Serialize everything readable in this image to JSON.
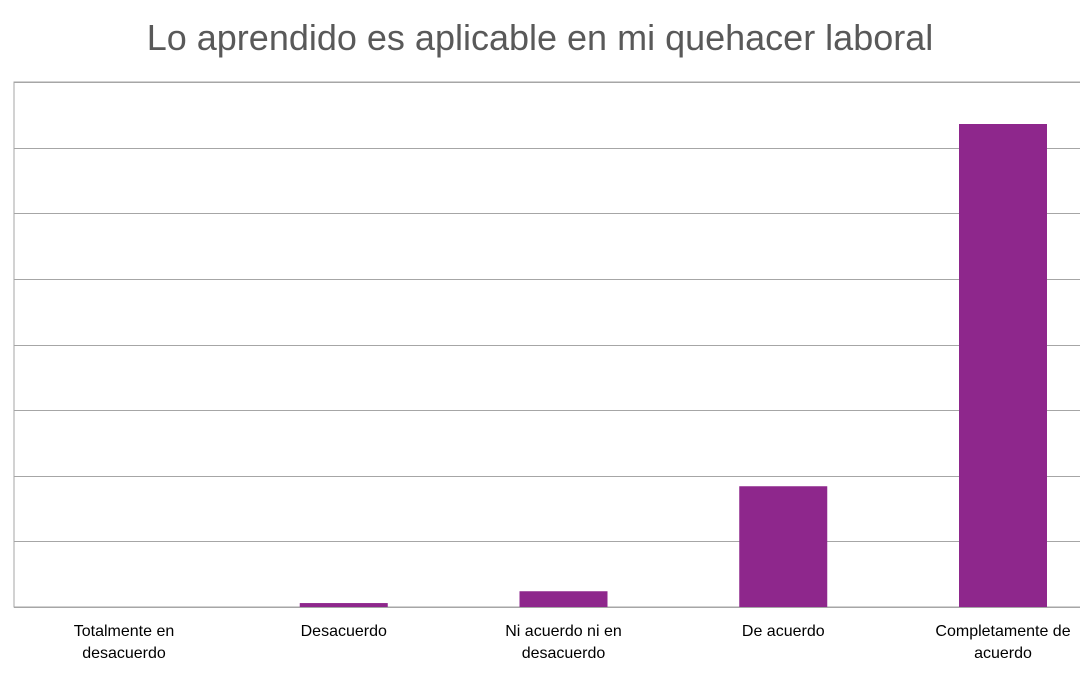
{
  "chart_data": {
    "type": "bar",
    "title": "Lo aprendido es aplicable en mi quehacer laboral",
    "xlabel": "",
    "ylabel": "",
    "categories": [
      [
        "Totalmente en",
        "desacuerdo"
      ],
      [
        "Desacuerdo"
      ],
      [
        "Ni acuerdo ni en",
        "desacuerdo"
      ],
      [
        "De acuerdo"
      ],
      [
        "Completamente de",
        "acuerdo"
      ]
    ],
    "values": [
      0,
      0.6,
      2.4,
      18.4,
      73.6
    ],
    "ylim": [
      0,
      80
    ],
    "ytick_step": 10,
    "y_tick_labels_visible": false,
    "grid": true,
    "legend": "none",
    "bar_color": "#8e278c",
    "grid_color": "#a6a6a6",
    "title_color": "#595959"
  }
}
